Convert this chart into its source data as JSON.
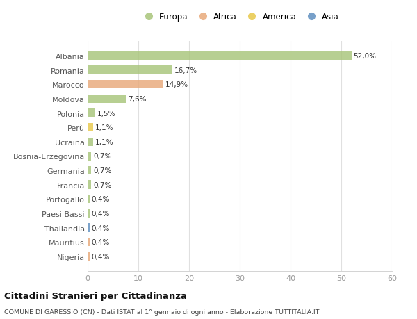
{
  "categories": [
    "Albania",
    "Romania",
    "Marocco",
    "Moldova",
    "Polonia",
    "Perù",
    "Ucraina",
    "Bosnia-Erzegovina",
    "Germania",
    "Francia",
    "Portogallo",
    "Paesi Bassi",
    "Thailandia",
    "Mauritius",
    "Nigeria"
  ],
  "values": [
    52.0,
    16.7,
    14.9,
    7.6,
    1.5,
    1.1,
    1.1,
    0.7,
    0.7,
    0.7,
    0.4,
    0.4,
    0.4,
    0.4,
    0.4
  ],
  "labels": [
    "52,0%",
    "16,7%",
    "14,9%",
    "7,6%",
    "1,5%",
    "1,1%",
    "1,1%",
    "0,7%",
    "0,7%",
    "0,7%",
    "0,4%",
    "0,4%",
    "0,4%",
    "0,4%",
    "0,4%"
  ],
  "colors": [
    "#a8c57a",
    "#a8c57a",
    "#e8a97a",
    "#a8c57a",
    "#a8c57a",
    "#e8c84a",
    "#a8c57a",
    "#a8c57a",
    "#a8c57a",
    "#a8c57a",
    "#a8c57a",
    "#a8c57a",
    "#6090c0",
    "#e8a97a",
    "#e8a97a"
  ],
  "legend_labels": [
    "Europa",
    "Africa",
    "America",
    "Asia"
  ],
  "legend_colors": [
    "#a8c57a",
    "#e8a97a",
    "#e8c84a",
    "#6090c0"
  ],
  "title": "Cittadini Stranieri per Cittadinanza",
  "subtitle": "COMUNE DI GARESSIO (CN) - Dati ISTAT al 1° gennaio di ogni anno - Elaborazione TUTTITALIA.IT",
  "xlim": [
    0,
    60
  ],
  "xticks": [
    0,
    10,
    20,
    30,
    40,
    50,
    60
  ],
  "background_color": "#ffffff",
  "grid_color": "#e0e0e0",
  "bar_height": 0.6
}
